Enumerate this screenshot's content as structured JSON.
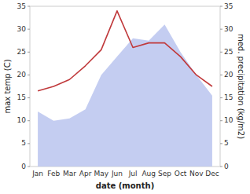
{
  "chart_data": {
    "type": "line",
    "xlabel": "date (month)",
    "ylabel": "max temp (C)",
    "y2label": "med. precipitation (kg/m2)",
    "categories": [
      "Jan",
      "Feb",
      "Mar",
      "Apr",
      "May",
      "Jun",
      "Jul",
      "Aug",
      "Sep",
      "Oct",
      "Nov",
      "Dec"
    ],
    "series": [
      {
        "type": "area",
        "color": "#bec8f0",
        "axis": "y2",
        "values": [
          12.0,
          10.0,
          10.5,
          12.5,
          20.0,
          24.0,
          28.0,
          27.5,
          31.0,
          25.0,
          20.0,
          15.5
        ]
      },
      {
        "type": "line",
        "color": "#c0393b",
        "values": [
          16.5,
          17.5,
          19.0,
          22.0,
          25.5,
          34.0,
          26.0,
          27.0,
          27.0,
          24.0,
          20.0,
          17.5
        ]
      }
    ],
    "ylim": [
      0,
      35
    ],
    "yticks": [
      0,
      5,
      10,
      15,
      20,
      25,
      30,
      35
    ],
    "y2lim": [
      0,
      35
    ],
    "y2ticks": [
      0,
      5,
      10,
      15,
      20,
      25,
      30,
      35
    ],
    "grid": false
  }
}
